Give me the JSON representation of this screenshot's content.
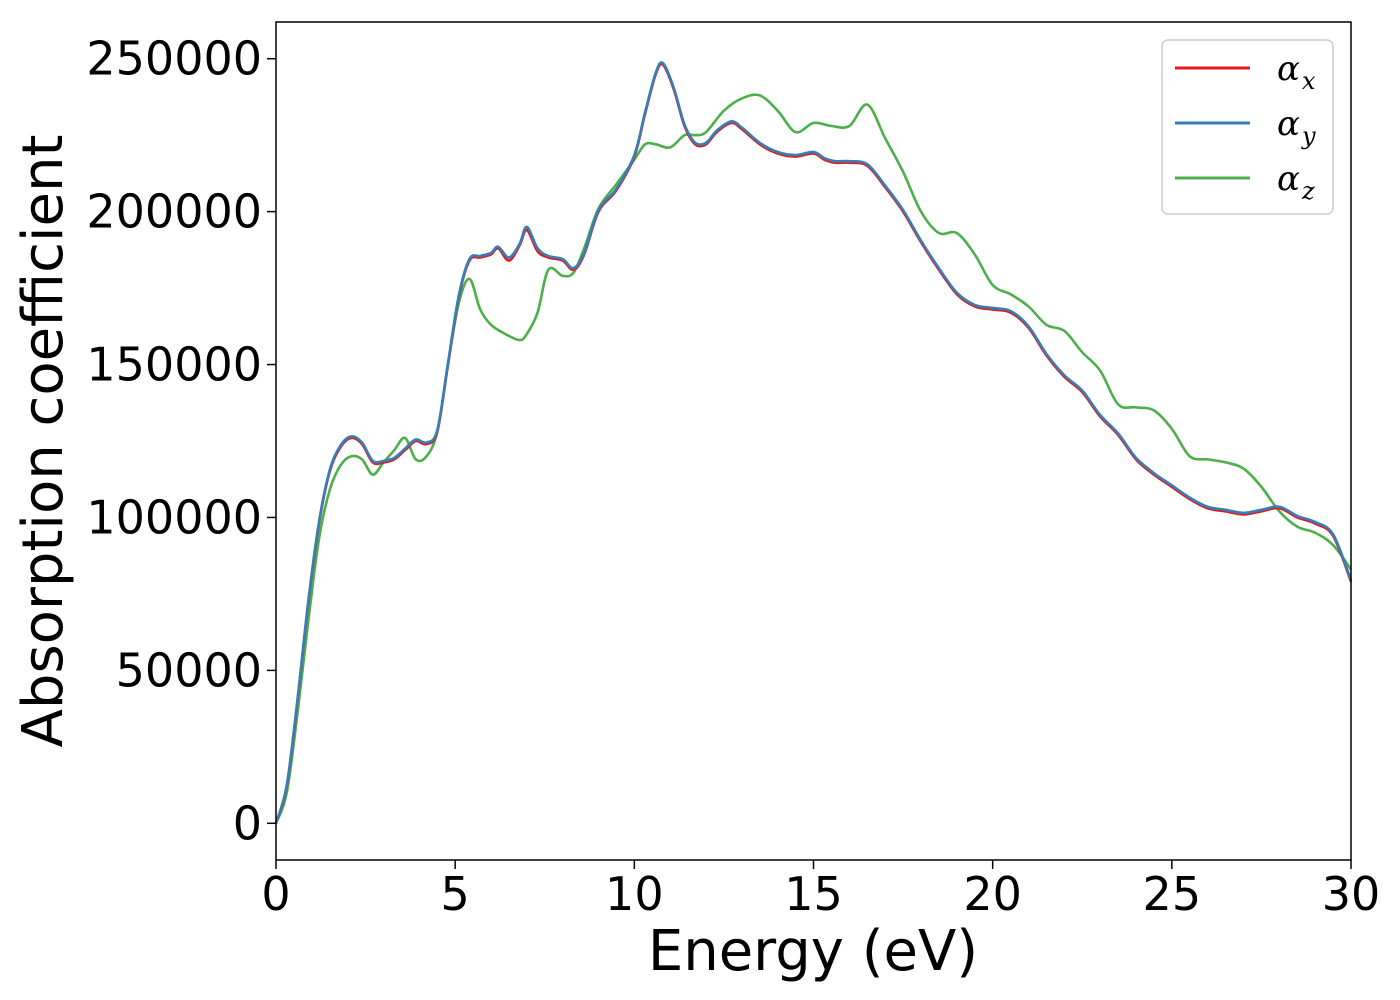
{
  "chart_data": {
    "type": "line",
    "title": "",
    "xlabel": "Energy (eV)",
    "ylabel": "Absorption coefficient",
    "xlim": [
      0,
      30
    ],
    "ylim": [
      -12000,
      262000
    ],
    "x_ticks": [
      0,
      5,
      10,
      15,
      20,
      25,
      30
    ],
    "x_tick_labels": [
      "0",
      "5",
      "10",
      "15",
      "20",
      "25",
      "30"
    ],
    "y_ticks": [
      0,
      50000,
      100000,
      150000,
      200000,
      250000
    ],
    "y_tick_labels": [
      "0",
      "50000",
      "100000",
      "150000",
      "200000",
      "250000"
    ],
    "grid": false,
    "legend_position": "top-right",
    "series": [
      {
        "name": "α",
        "subscript": "x",
        "color": "#e41a1c",
        "x": [
          0,
          0.3,
          0.6,
          0.9,
          1.2,
          1.5,
          1.8,
          2.1,
          2.4,
          2.7,
          3.0,
          3.3,
          3.6,
          3.9,
          4.2,
          4.5,
          4.8,
          5.1,
          5.4,
          5.7,
          6.0,
          6.2,
          6.5,
          6.8,
          7.0,
          7.3,
          7.6,
          8.0,
          8.3,
          8.6,
          9.0,
          9.5,
          10.0,
          10.3,
          10.6,
          10.8,
          11.1,
          11.4,
          11.7,
          12.0,
          12.3,
          12.7,
          13.0,
          13.5,
          14.0,
          14.5,
          15.0,
          15.3,
          15.6,
          16.0,
          16.5,
          17.0,
          17.5,
          18.0,
          18.5,
          19.0,
          19.5,
          20.0,
          20.5,
          21.0,
          21.5,
          22.0,
          22.5,
          23.0,
          23.5,
          24.0,
          24.5,
          25.0,
          25.5,
          26.0,
          26.5,
          27.0,
          27.5,
          28.0,
          28.5,
          29.0,
          29.5,
          30.0
        ],
        "y": [
          0,
          12000,
          40000,
          72000,
          98000,
          115000,
          123000,
          126000,
          124000,
          118000,
          118000,
          119000,
          122000,
          125000,
          124000,
          128000,
          150000,
          172000,
          184000,
          185000,
          186000,
          188000,
          184000,
          189000,
          194000,
          187000,
          185000,
          184000,
          181000,
          186000,
          200000,
          207000,
          218000,
          232000,
          245000,
          248000,
          240000,
          228000,
          222000,
          222000,
          226000,
          229000,
          227000,
          222000,
          219000,
          218000,
          219000,
          217000,
          216000,
          216000,
          215000,
          208000,
          200000,
          190000,
          181000,
          173000,
          169000,
          168000,
          167000,
          162000,
          153000,
          146000,
          141000,
          133000,
          127000,
          119000,
          114000,
          110000,
          106000,
          103000,
          102000,
          101000,
          102000,
          103000,
          100000,
          98000,
          94000,
          79000
        ]
      },
      {
        "name": "α",
        "subscript": "y",
        "color": "#377eb8",
        "x": [
          0,
          0.3,
          0.6,
          0.9,
          1.2,
          1.5,
          1.8,
          2.1,
          2.4,
          2.7,
          3.0,
          3.3,
          3.6,
          3.9,
          4.2,
          4.5,
          4.8,
          5.1,
          5.4,
          5.7,
          6.0,
          6.2,
          6.5,
          6.8,
          7.0,
          7.3,
          7.6,
          8.0,
          8.3,
          8.6,
          9.0,
          9.5,
          10.0,
          10.3,
          10.6,
          10.8,
          11.1,
          11.4,
          11.7,
          12.0,
          12.3,
          12.7,
          13.0,
          13.5,
          14.0,
          14.5,
          15.0,
          15.3,
          15.6,
          16.0,
          16.5,
          17.0,
          17.5,
          18.0,
          18.5,
          19.0,
          19.5,
          20.0,
          20.5,
          21.0,
          21.5,
          22.0,
          22.5,
          23.0,
          23.5,
          24.0,
          24.5,
          25.0,
          25.5,
          26.0,
          26.5,
          27.0,
          27.5,
          28.0,
          28.5,
          29.0,
          29.5,
          30.0
        ],
        "y": [
          0,
          12500,
          40500,
          72500,
          98500,
          115500,
          123500,
          126500,
          124500,
          118500,
          118500,
          119500,
          122500,
          125500,
          124500,
          128500,
          150500,
          172500,
          184500,
          185500,
          186500,
          188500,
          185000,
          189500,
          195000,
          188000,
          185500,
          184500,
          181500,
          186500,
          200500,
          207500,
          218500,
          232500,
          245500,
          248500,
          240500,
          228500,
          222500,
          222500,
          226500,
          229500,
          227500,
          222500,
          219500,
          218500,
          219500,
          217500,
          216500,
          216500,
          215500,
          208500,
          200500,
          190500,
          181500,
          173500,
          169500,
          168500,
          167500,
          162500,
          153500,
          146500,
          141500,
          133500,
          127500,
          119500,
          114500,
          110500,
          106500,
          103500,
          102500,
          101500,
          102500,
          103500,
          100500,
          98500,
          94500,
          79500
        ]
      },
      {
        "name": "α",
        "subscript": "z",
        "color": "#4daf4a",
        "x": [
          0,
          0.3,
          0.6,
          0.9,
          1.2,
          1.5,
          1.8,
          2.1,
          2.4,
          2.7,
          3.0,
          3.3,
          3.6,
          3.9,
          4.2,
          4.5,
          4.8,
          5.1,
          5.4,
          5.7,
          6.0,
          6.4,
          6.8,
          7.0,
          7.3,
          7.6,
          8.0,
          8.3,
          8.6,
          9.0,
          9.5,
          10.0,
          10.3,
          10.6,
          11.0,
          11.4,
          11.7,
          12.0,
          12.5,
          13.0,
          13.5,
          14.0,
          14.5,
          15.0,
          15.5,
          16.0,
          16.5,
          17.0,
          17.5,
          18.0,
          18.5,
          19.0,
          19.5,
          20.0,
          20.5,
          21.0,
          21.5,
          22.0,
          22.5,
          23.0,
          23.5,
          24.0,
          24.5,
          25.0,
          25.5,
          26.0,
          26.5,
          27.0,
          27.5,
          28.0,
          28.5,
          29.0,
          29.5,
          30.0
        ],
        "y": [
          0,
          10000,
          36000,
          66000,
          93000,
          109000,
          117000,
          120000,
          119000,
          114000,
          118000,
          122000,
          126000,
          119000,
          120000,
          128000,
          150000,
          170000,
          178000,
          168000,
          163000,
          160000,
          158000,
          160000,
          167000,
          181000,
          179000,
          180000,
          188000,
          201000,
          209000,
          217000,
          222000,
          222000,
          221000,
          225000,
          225000,
          226000,
          233000,
          237000,
          238000,
          233000,
          226000,
          229000,
          228000,
          228000,
          235000,
          224000,
          213000,
          200000,
          193000,
          193000,
          186000,
          176000,
          173000,
          169000,
          163000,
          161000,
          154000,
          148000,
          137000,
          136000,
          135000,
          129000,
          120000,
          119000,
          118000,
          116000,
          110000,
          102000,
          97000,
          95000,
          91000,
          83000
        ]
      }
    ]
  }
}
